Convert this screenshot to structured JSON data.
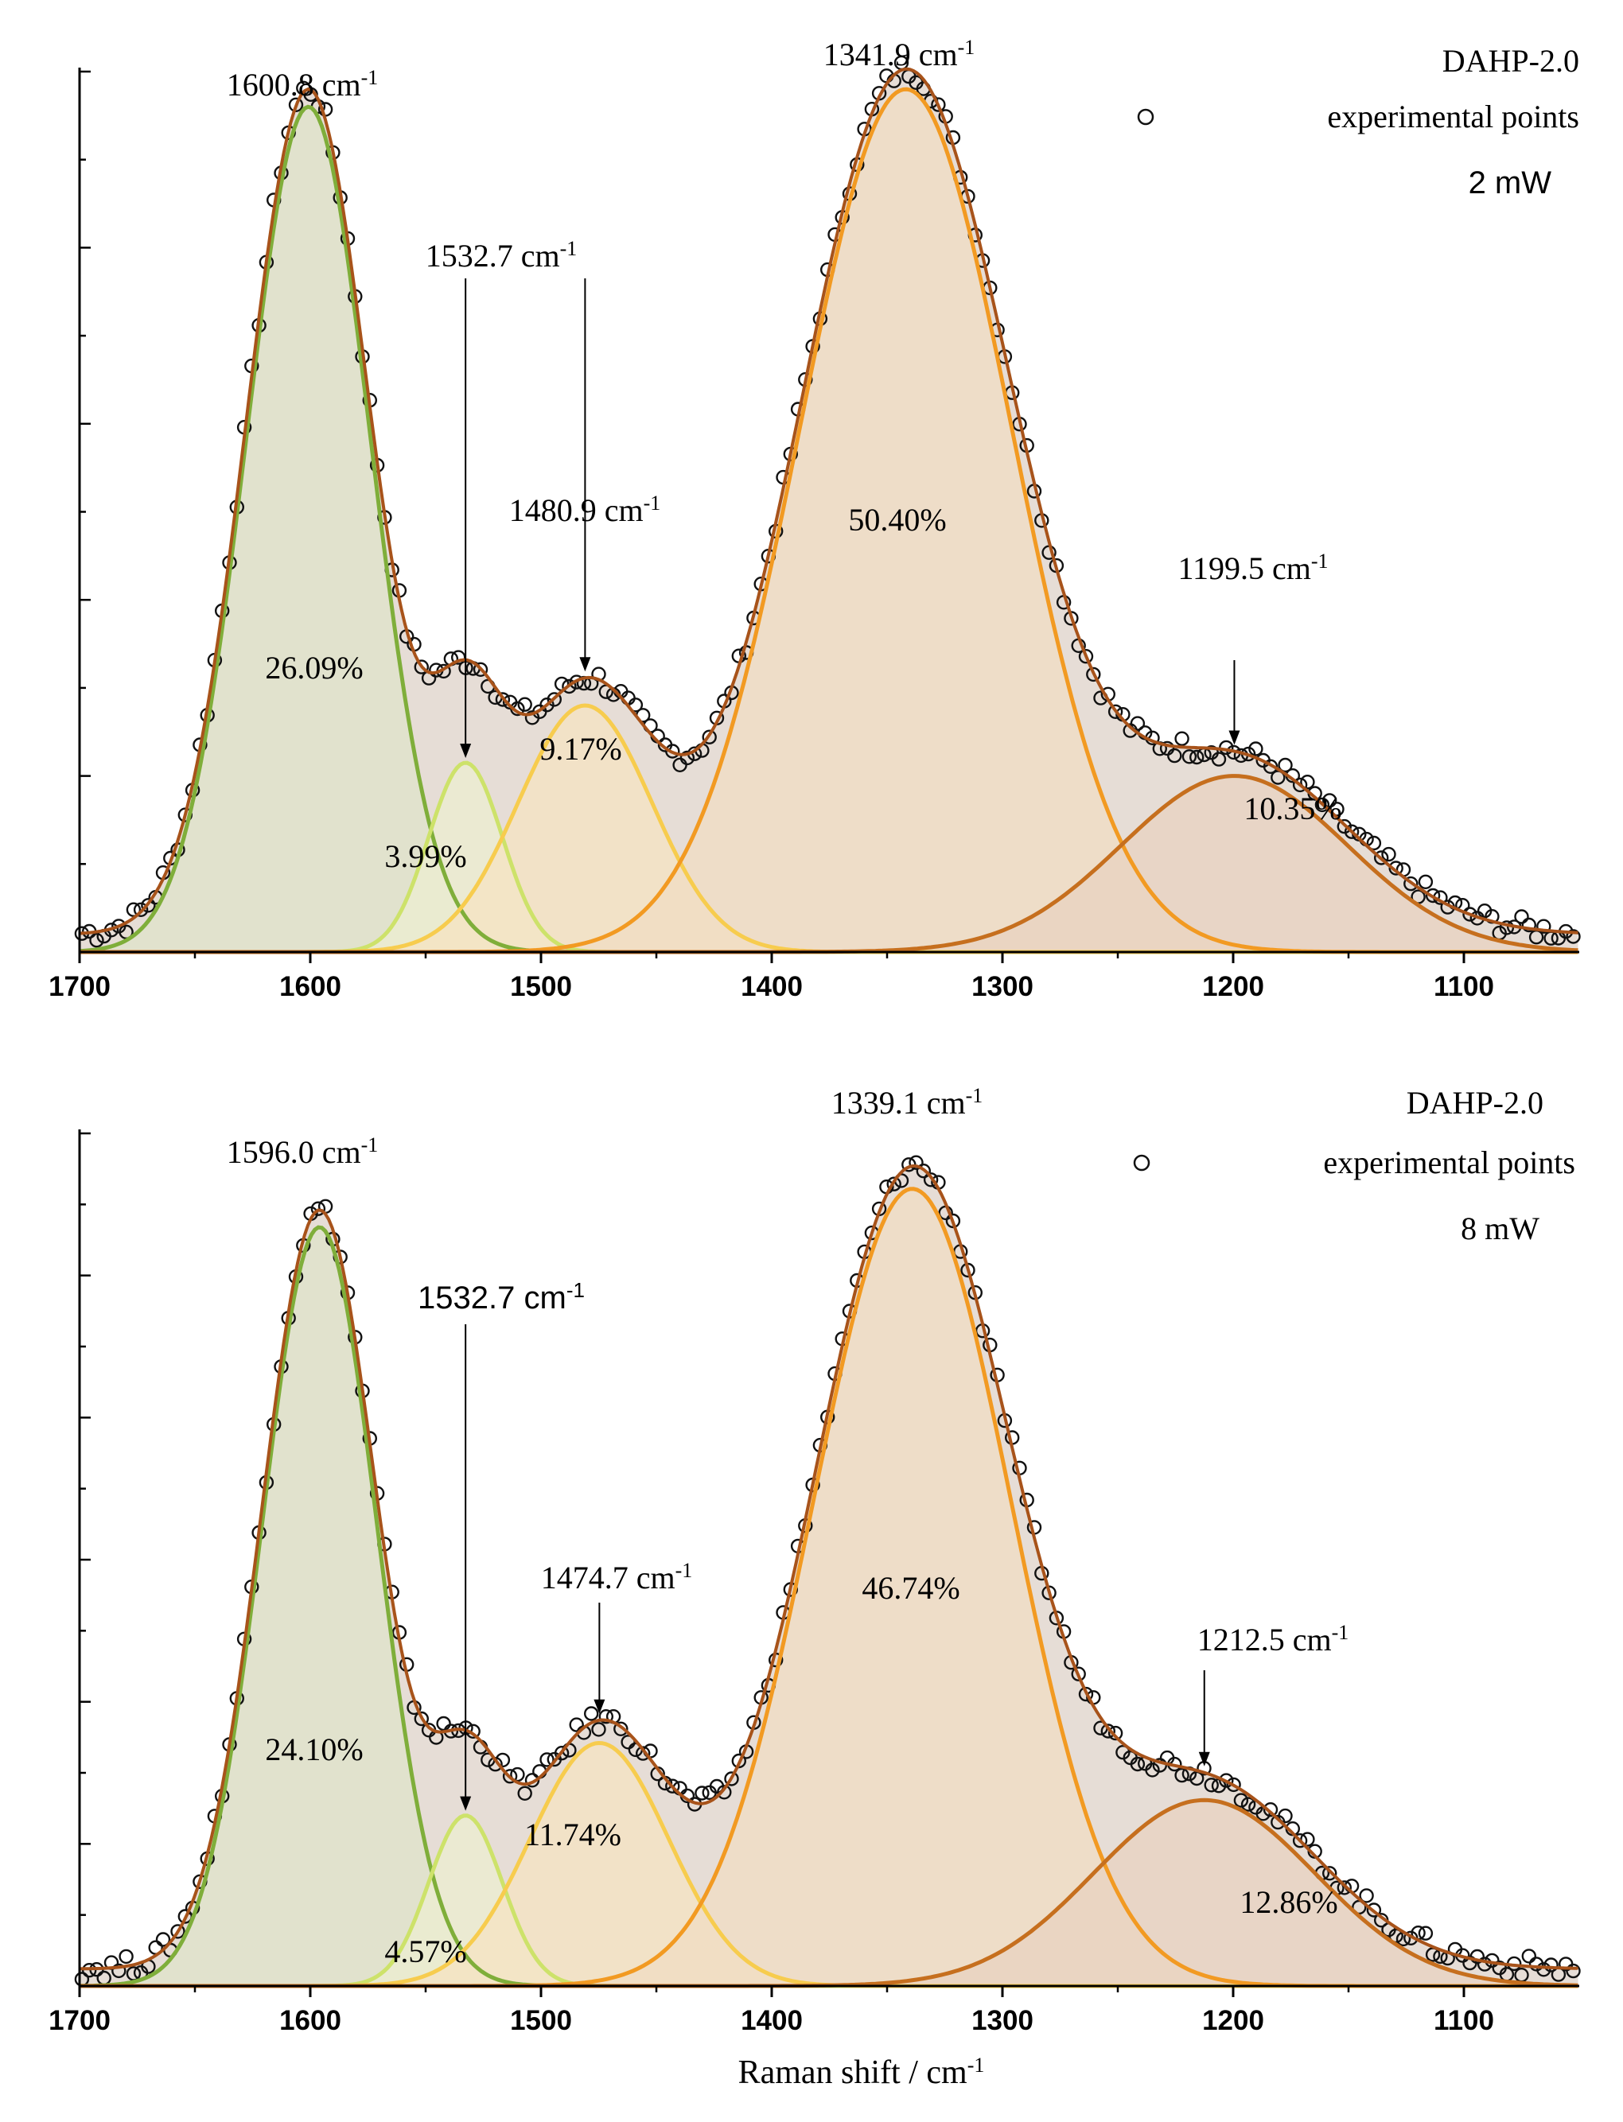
{
  "chart_data": [
    {
      "type": "line",
      "title": "DAHP-2.0",
      "legend_label": "experimental points",
      "power_label": "2 mW",
      "xlabel": "",
      "ylabel": "",
      "xlim": [
        1700,
        1050
      ],
      "ylim": [
        0,
        1.0
      ],
      "xticks": [
        1700,
        1600,
        1500,
        1400,
        1300,
        1200,
        1100
      ],
      "peaks": [
        {
          "center": 1600.8,
          "height": 0.96,
          "sigma": 27,
          "color": "#7fae3a",
          "fill": "#dfe3c9",
          "percent_label": "26.09%",
          "peak_label": "1600.8 cm",
          "arrow": false
        },
        {
          "center": 1532.7,
          "height": 0.215,
          "sigma": 16,
          "color": "#cde26a",
          "fill": "#eceed0",
          "percent_label": "3.99%",
          "peak_label": "1532.7 cm",
          "arrow": true
        },
        {
          "center": 1480.9,
          "height": 0.28,
          "sigma": 29,
          "color": "#f7cc4e",
          "fill": "#f5e3c2",
          "percent_label": "9.17%",
          "peak_label": "1480.9 cm",
          "arrow": true
        },
        {
          "center": 1341.9,
          "height": 0.98,
          "sigma": 46,
          "color": "#f29a22",
          "fill": "#f0dcc3",
          "percent_label": "50.40%",
          "peak_label": "1341.9 cm",
          "arrow": false
        },
        {
          "center": 1199.5,
          "height": 0.2,
          "sigma": 49,
          "color": "#c66f1e",
          "fill": "#e8d2c0",
          "percent_label": "10.35%",
          "peak_label": "1199.5 cm",
          "arrow": true
        }
      ],
      "superscript": "-1"
    },
    {
      "type": "line",
      "title": "DAHP-2.0",
      "legend_label": "experimental points",
      "power_label": "8 mW",
      "xlabel": "Raman shift / cm",
      "ylabel": "",
      "xlim": [
        1700,
        1050
      ],
      "ylim": [
        0,
        1.0
      ],
      "xticks": [
        1700,
        1600,
        1500,
        1400,
        1300,
        1200,
        1100
      ],
      "peaks": [
        {
          "center": 1596.0,
          "height": 0.89,
          "sigma": 25,
          "color": "#7fae3a",
          "fill": "#dfe3c9",
          "percent_label": "24.10%",
          "peak_label": "1596.0 cm",
          "arrow": false
        },
        {
          "center": 1532.7,
          "height": 0.2,
          "sigma": 16,
          "color": "#cde26a",
          "fill": "#eceed0",
          "percent_label": "4.57%",
          "peak_label": "1532.7 cm",
          "arrow": true
        },
        {
          "center": 1474.7,
          "height": 0.285,
          "sigma": 30,
          "color": "#f7cc4e",
          "fill": "#f5e3c2",
          "percent_label": "11.74%",
          "peak_label": "1474.7 cm",
          "arrow": true
        },
        {
          "center": 1339.1,
          "height": 0.935,
          "sigma": 43,
          "color": "#f29a22",
          "fill": "#f0dcc3",
          "percent_label": "46.74%",
          "peak_label": "1339.1 cm",
          "arrow": false
        },
        {
          "center": 1212.5,
          "height": 0.218,
          "sigma": 48,
          "color": "#c66f1e",
          "fill": "#e8d2c0",
          "percent_label": "12.86%",
          "peak_label": "1212.5 cm",
          "arrow": true
        }
      ],
      "superscript": "-1"
    }
  ]
}
